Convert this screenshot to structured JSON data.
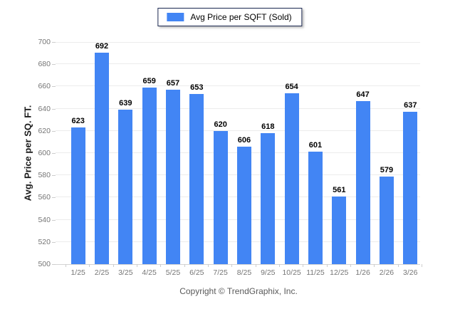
{
  "legend": {
    "label": "Avg Price per SQFT (Sold)"
  },
  "footer": {
    "copyright": "Copyright © TrendGraphix, Inc."
  },
  "colors": {
    "bar": "#4285F4",
    "legend_border": "#1C2951"
  },
  "chart_data": {
    "type": "bar",
    "title": "",
    "categories": [
      "1/25",
      "2/25",
      "3/25",
      "4/25",
      "5/25",
      "6/25",
      "7/25",
      "8/25",
      "9/25",
      "10/25",
      "11/25",
      "12/25",
      "1/26",
      "2/26",
      "3/26"
    ],
    "values": [
      623,
      692,
      639,
      659,
      657,
      653,
      620,
      606,
      618,
      654,
      601,
      561,
      647,
      579,
      637
    ],
    "series_name": "Avg Price per SQFT (Sold)",
    "xlabel": "",
    "ylabel": "Avg. Price per SQ. FT.",
    "ylim": [
      500,
      700
    ],
    "ytick_step": 20,
    "yticks": [
      500,
      520,
      540,
      560,
      580,
      600,
      620,
      640,
      660,
      680,
      700
    ],
    "grid": true,
    "value_labels": true,
    "legend_position": "top-center",
    "bar_color": "#4285F4"
  }
}
